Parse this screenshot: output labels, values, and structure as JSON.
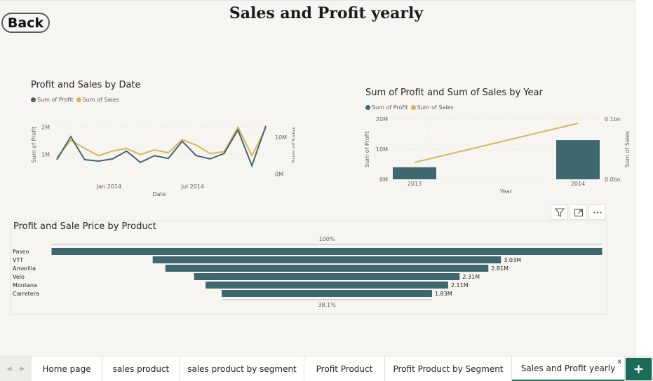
{
  "header": {
    "back_label": "Back",
    "title": "Sales and Profit yearly"
  },
  "visuals": {
    "date_chart": {
      "title": "Profit and Sales by Date",
      "legend": [
        "Sum of Profit",
        "Sum of  Sales"
      ]
    },
    "year_chart": {
      "title": "Sum of Profit and Sum of Sales by Year",
      "legend": [
        "Sum of Profit",
        "Sum of  Sales"
      ]
    },
    "product_chart": {
      "title": "Profit and Sale Price by Product"
    }
  },
  "colors": {
    "profit": "#3f6770",
    "sales": "#d6b55a"
  },
  "icons": [
    "filter-icon",
    "focus-mode-icon",
    "more-options-icon"
  ],
  "chart_data": [
    {
      "type": "line",
      "title": "Profit and Sales by Date",
      "xlabel": "Date",
      "ylabel": "Sum of Profit",
      "y2label": "Sum of Sales",
      "x_ticks": [
        "Jan 2014",
        "Jul 2014"
      ],
      "y_ticks": [
        "1M",
        "2M"
      ],
      "y2_ticks": [
        "0M",
        "10M"
      ],
      "legend_position": "top-left",
      "series": [
        {
          "name": "Sum of Profit",
          "axis": "left",
          "values": [
            0.8,
            1.65,
            0.8,
            0.75,
            0.83,
            1.12,
            0.7,
            0.95,
            0.85,
            1.48,
            0.95,
            0.83,
            1.03,
            1.9,
            0.58,
            2.05
          ]
        },
        {
          "name": "Sum of  Sales",
          "axis": "right",
          "values": [
            4.5,
            9.2,
            7.0,
            5.0,
            6.3,
            7.0,
            5.3,
            6.6,
            5.8,
            9.4,
            7.9,
            5.6,
            6.1,
            12.8,
            5.0,
            12.5
          ]
        }
      ]
    },
    {
      "type": "bar",
      "title": "Sum of Profit and Sum of Sales by Year",
      "xlabel": "Year",
      "ylabel": "Sum of Profit",
      "y2label": "Sum of Sales",
      "categories": [
        "2013",
        "2014"
      ],
      "y_ticks": [
        "0M",
        "10M",
        "20M"
      ],
      "y2_ticks": [
        "0.0bn",
        "0.1bn"
      ],
      "legend_position": "top-left",
      "series": [
        {
          "name": "Sum of Profit",
          "kind": "bar",
          "values": [
            4,
            13
          ]
        },
        {
          "name": "Sum of  Sales",
          "kind": "line",
          "values": [
            0.028,
            0.093
          ]
        }
      ]
    },
    {
      "type": "bar",
      "orientation": "horizontal",
      "title": "Profit and Sale Price by Product",
      "categories": [
        "Paseo",
        "VTT",
        "Amarilla",
        "Velo",
        "Montana",
        "Carretera"
      ],
      "values": [
        4.79,
        3.03,
        2.81,
        2.31,
        2.11,
        1.83
      ],
      "value_labels": [
        "",
        "3.03M",
        "2.81M",
        "2.31M",
        "2.11M",
        "1.83M"
      ],
      "top_label": "100%",
      "bottom_label": "38.1%"
    }
  ],
  "tabs": [
    {
      "label": "Home page"
    },
    {
      "label": "sales product"
    },
    {
      "label": "sales product by segment"
    },
    {
      "label": "Profit Product"
    },
    {
      "label": "Profit Product by Segment"
    },
    {
      "label": "Sales and Profit yearly",
      "active": true
    }
  ],
  "tab_close": "x",
  "add_tab": "+"
}
